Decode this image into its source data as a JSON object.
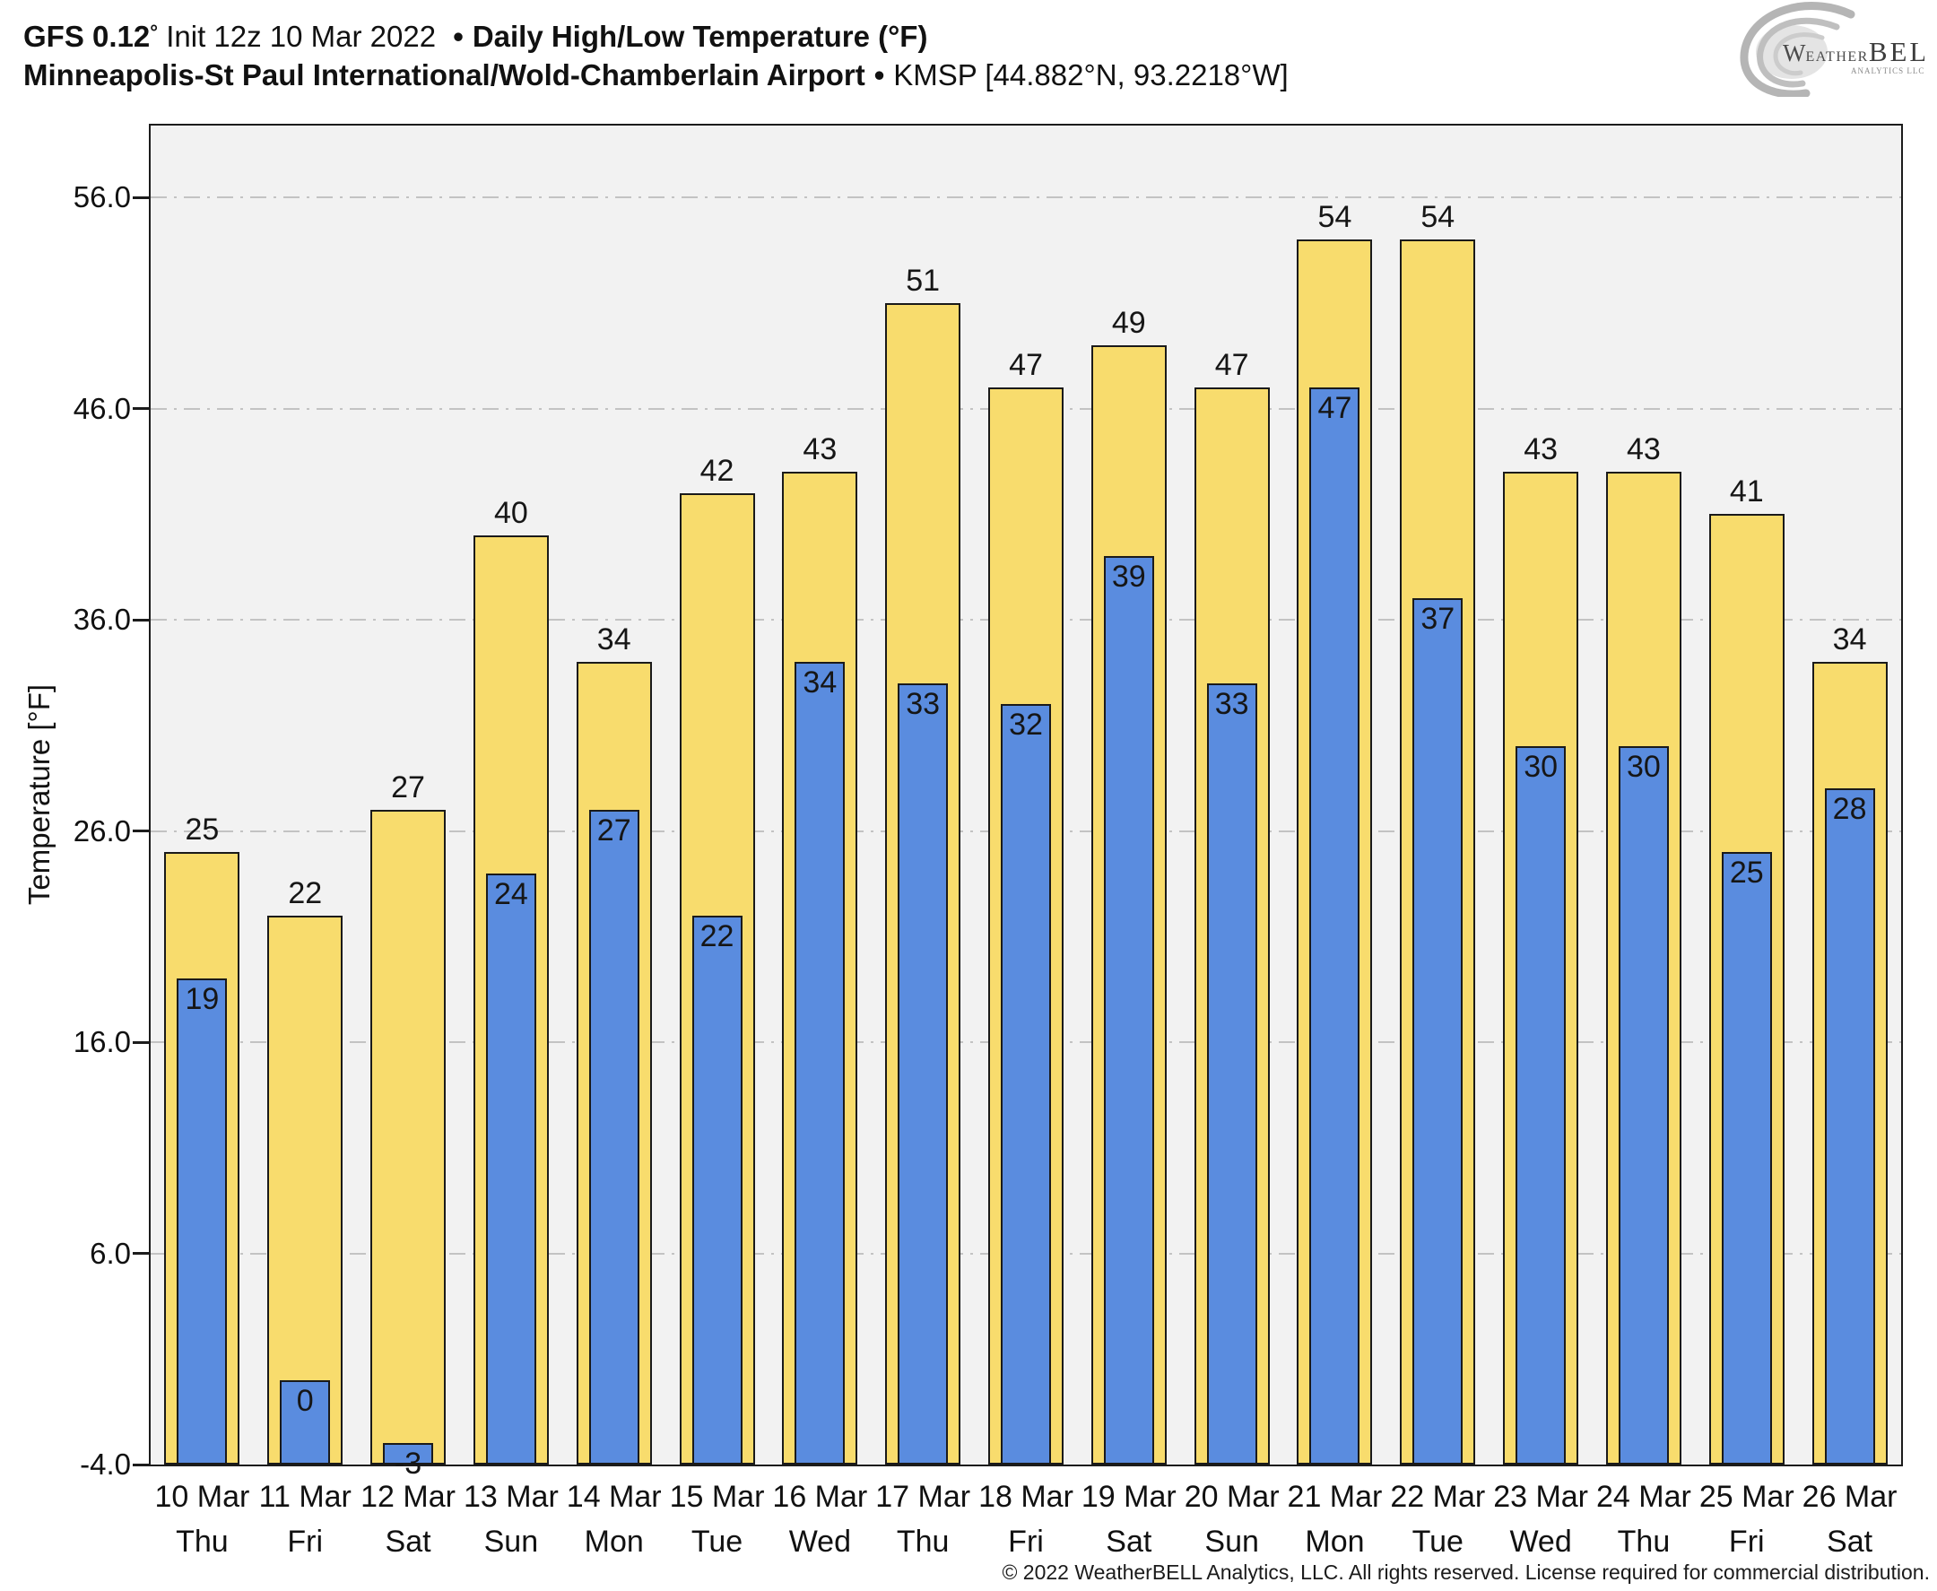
{
  "header": {
    "title_model": "GFS 0.12",
    "title_degree": "°",
    "title_init": " Init 12z 10 Mar 2022 ",
    "title_sep": "•",
    "title_metric": "Daily High/Low Temperature (°F)",
    "subtitle_station": "Minneapolis-St Paul International/Wold-Chamberlain Airport",
    "subtitle_sep": "•",
    "subtitle_coords": "KMSP [44.882°N, 93.2218°W]"
  },
  "logo": {
    "word_w": "W",
    "word_eather": "EATHER",
    "word_bell": "BELL",
    "word_sub": "ANALYTICS LLC"
  },
  "chart_data": {
    "type": "bar",
    "title": "Daily High/Low Temperature (°F)",
    "station": "Minneapolis-St Paul International/Wold-Chamberlain Airport (KMSP)",
    "xlabel": "",
    "ylabel": "Temperature [°F]",
    "ylim": [
      -4,
      59.4
    ],
    "ytick_values": [
      56,
      46,
      36,
      26,
      16,
      6,
      -4
    ],
    "ytick_labels": [
      "56.0",
      "46.0",
      "36.0",
      "26.0",
      "16.0",
      "6.0",
      "-4.0"
    ],
    "grid": "horizontal dash-dot",
    "legend_position": "none",
    "categories_date": [
      "10 Mar",
      "11 Mar",
      "12 Mar",
      "13 Mar",
      "14 Mar",
      "15 Mar",
      "16 Mar",
      "17 Mar",
      "18 Mar",
      "19 Mar",
      "20 Mar",
      "21 Mar",
      "22 Mar",
      "23 Mar",
      "24 Mar",
      "25 Mar",
      "26 Mar"
    ],
    "categories_day": [
      "Thu",
      "Fri",
      "Sat",
      "Sun",
      "Mon",
      "Tue",
      "Wed",
      "Thu",
      "Fri",
      "Sat",
      "Sun",
      "Mon",
      "Tue",
      "Wed",
      "Thu",
      "Fri",
      "Sat"
    ],
    "series": [
      {
        "name": "Daily High",
        "color": "#f8dc6d",
        "values": [
          25,
          22,
          27,
          40,
          34,
          42,
          43,
          51,
          47,
          49,
          47,
          54,
          54,
          43,
          43,
          41,
          34
        ]
      },
      {
        "name": "Daily Low",
        "color": "#5a8cdf",
        "values": [
          19,
          0,
          -3,
          24,
          27,
          22,
          34,
          33,
          32,
          39,
          33,
          47,
          37,
          30,
          30,
          25,
          28
        ]
      }
    ]
  },
  "colors": {
    "high_fill": "#f8dc6d",
    "low_fill": "#5a8cdf",
    "bar_border": "#1a1a1a",
    "plot_bg": "#f2f2f2",
    "gridline": "#c3c3c3",
    "axis_text": "#111111",
    "logo_gray": "#b5b5b5",
    "logo_text": "#4a4a4a"
  },
  "footer": {
    "copyright": "© 2022 WeatherBELL Analytics, LLC. All rights reserved. License required for commercial distribution."
  }
}
